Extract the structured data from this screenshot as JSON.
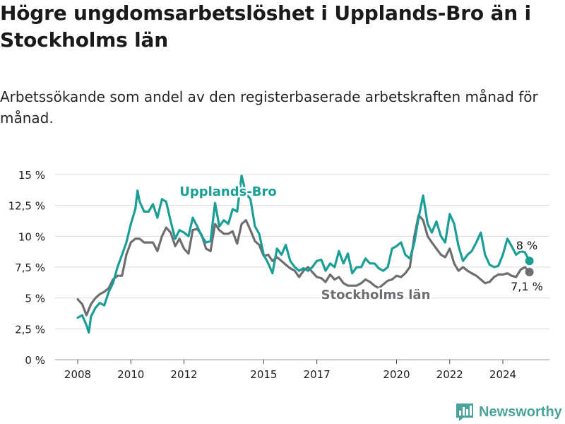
{
  "header": {
    "title": "Högre ungdomsarbetslöshet i Upplands-Bro än i Stockholms län",
    "subtitle": "Arbetssökande som andel av den registerbaserade arbetskraften månad för månad."
  },
  "branding": {
    "name": "Newsworthy",
    "icon": "bar-chart-flag-icon",
    "color": "#4aa39a"
  },
  "chart_data": {
    "type": "line",
    "y_ticks": [
      "0 %",
      "2,5 %",
      "5 %",
      "7,5 %",
      "10 %",
      "12,5 %",
      "15 %"
    ],
    "y_tick_values": [
      0,
      2.5,
      5,
      7.5,
      10,
      12.5,
      15
    ],
    "x_ticks": [
      "2008",
      "2010",
      "2012",
      "2015",
      "2017",
      "2020",
      "2022",
      "2024"
    ],
    "x_tick_values": [
      2008,
      2010,
      2012,
      2015,
      2017,
      2020,
      2022,
      2024
    ],
    "xlim": [
      2008,
      2025.2
    ],
    "ylim": [
      0,
      15
    ],
    "grid": true,
    "series": [
      {
        "name": "Upplands-Bro",
        "color": "#1a9e96",
        "end_label": "8 %",
        "points": [
          [
            2008.0,
            3.4
          ],
          [
            2008.17,
            3.6
          ],
          [
            2008.33,
            2.8
          ],
          [
            2008.42,
            2.2
          ],
          [
            2008.5,
            3.5
          ],
          [
            2008.67,
            4.2
          ],
          [
            2008.83,
            4.6
          ],
          [
            2009.0,
            4.4
          ],
          [
            2009.17,
            5.5
          ],
          [
            2009.33,
            6.2
          ],
          [
            2009.5,
            7.5
          ],
          [
            2009.67,
            8.5
          ],
          [
            2009.83,
            9.5
          ],
          [
            2010.0,
            11.0
          ],
          [
            2010.17,
            12.2
          ],
          [
            2010.25,
            13.7
          ],
          [
            2010.33,
            12.8
          ],
          [
            2010.5,
            12.0
          ],
          [
            2010.67,
            12.0
          ],
          [
            2010.83,
            12.6
          ],
          [
            2011.0,
            11.5
          ],
          [
            2011.17,
            13.0
          ],
          [
            2011.33,
            12.8
          ],
          [
            2011.5,
            11.2
          ],
          [
            2011.67,
            9.8
          ],
          [
            2011.83,
            10.5
          ],
          [
            2012.0,
            10.3
          ],
          [
            2012.17,
            10.0
          ],
          [
            2012.33,
            11.5
          ],
          [
            2012.5,
            10.8
          ],
          [
            2012.67,
            10.0
          ],
          [
            2012.83,
            9.5
          ],
          [
            2013.0,
            9.6
          ],
          [
            2013.17,
            12.7
          ],
          [
            2013.33,
            10.8
          ],
          [
            2013.5,
            11.3
          ],
          [
            2013.67,
            11.0
          ],
          [
            2013.83,
            12.2
          ],
          [
            2014.0,
            12.0
          ],
          [
            2014.17,
            14.9
          ],
          [
            2014.33,
            13.5
          ],
          [
            2014.5,
            13.0
          ],
          [
            2014.67,
            10.8
          ],
          [
            2014.83,
            10.2
          ],
          [
            2015.0,
            8.5
          ],
          [
            2015.17,
            7.8
          ],
          [
            2015.33,
            7.0
          ],
          [
            2015.5,
            9.0
          ],
          [
            2015.67,
            8.5
          ],
          [
            2015.83,
            9.3
          ],
          [
            2016.0,
            8.0
          ],
          [
            2016.17,
            7.5
          ],
          [
            2016.33,
            7.2
          ],
          [
            2016.5,
            7.4
          ],
          [
            2016.67,
            7.2
          ],
          [
            2016.83,
            7.5
          ],
          [
            2017.0,
            8.0
          ],
          [
            2017.17,
            8.1
          ],
          [
            2017.33,
            7.2
          ],
          [
            2017.5,
            7.8
          ],
          [
            2017.67,
            7.5
          ],
          [
            2017.83,
            8.8
          ],
          [
            2018.0,
            7.8
          ],
          [
            2018.17,
            8.6
          ],
          [
            2018.33,
            7.0
          ],
          [
            2018.5,
            7.5
          ],
          [
            2018.67,
            7.5
          ],
          [
            2018.83,
            8.2
          ],
          [
            2019.0,
            7.8
          ],
          [
            2019.17,
            7.8
          ],
          [
            2019.33,
            7.4
          ],
          [
            2019.5,
            7.2
          ],
          [
            2019.67,
            7.5
          ],
          [
            2019.83,
            9.0
          ],
          [
            2020.0,
            9.2
          ],
          [
            2020.17,
            9.5
          ],
          [
            2020.33,
            8.5
          ],
          [
            2020.5,
            8.2
          ],
          [
            2020.67,
            9.5
          ],
          [
            2020.83,
            11.5
          ],
          [
            2021.0,
            13.3
          ],
          [
            2021.17,
            11.0
          ],
          [
            2021.33,
            10.3
          ],
          [
            2021.5,
            11.2
          ],
          [
            2021.67,
            10.0
          ],
          [
            2021.83,
            9.5
          ],
          [
            2022.0,
            11.8
          ],
          [
            2022.17,
            11.0
          ],
          [
            2022.33,
            9.2
          ],
          [
            2022.5,
            8.0
          ],
          [
            2022.67,
            8.5
          ],
          [
            2022.83,
            8.8
          ],
          [
            2023.0,
            9.5
          ],
          [
            2023.17,
            10.3
          ],
          [
            2023.33,
            8.5
          ],
          [
            2023.5,
            7.7
          ],
          [
            2023.67,
            7.5
          ],
          [
            2023.83,
            7.6
          ],
          [
            2024.0,
            8.5
          ],
          [
            2024.17,
            9.8
          ],
          [
            2024.33,
            9.2
          ],
          [
            2024.5,
            8.5
          ],
          [
            2024.67,
            8.8
          ],
          [
            2024.83,
            8.7
          ],
          [
            2025.0,
            8.0
          ]
        ]
      },
      {
        "name": "Stockholms län",
        "color": "#6e6e72",
        "end_label": "7,1 %",
        "points": [
          [
            2008.0,
            4.9
          ],
          [
            2008.17,
            4.5
          ],
          [
            2008.33,
            3.6
          ],
          [
            2008.5,
            4.5
          ],
          [
            2008.67,
            5.0
          ],
          [
            2008.83,
            5.3
          ],
          [
            2009.0,
            5.5
          ],
          [
            2009.17,
            5.8
          ],
          [
            2009.33,
            6.5
          ],
          [
            2009.5,
            6.8
          ],
          [
            2009.67,
            6.8
          ],
          [
            2009.83,
            8.5
          ],
          [
            2010.0,
            9.5
          ],
          [
            2010.17,
            9.8
          ],
          [
            2010.33,
            9.8
          ],
          [
            2010.5,
            9.5
          ],
          [
            2010.67,
            9.5
          ],
          [
            2010.83,
            9.5
          ],
          [
            2011.0,
            8.8
          ],
          [
            2011.17,
            10.0
          ],
          [
            2011.33,
            10.7
          ],
          [
            2011.5,
            10.3
          ],
          [
            2011.67,
            9.2
          ],
          [
            2011.83,
            9.8
          ],
          [
            2012.0,
            9.0
          ],
          [
            2012.17,
            8.6
          ],
          [
            2012.33,
            10.5
          ],
          [
            2012.5,
            10.6
          ],
          [
            2012.67,
            10.1
          ],
          [
            2012.83,
            9.0
          ],
          [
            2013.0,
            8.8
          ],
          [
            2013.17,
            11.0
          ],
          [
            2013.33,
            10.5
          ],
          [
            2013.5,
            10.2
          ],
          [
            2013.67,
            10.2
          ],
          [
            2013.83,
            10.4
          ],
          [
            2014.0,
            9.4
          ],
          [
            2014.17,
            11.0
          ],
          [
            2014.33,
            11.3
          ],
          [
            2014.5,
            10.5
          ],
          [
            2014.67,
            9.6
          ],
          [
            2014.83,
            9.3
          ],
          [
            2015.0,
            8.4
          ],
          [
            2015.17,
            8.5
          ],
          [
            2015.33,
            8.0
          ],
          [
            2015.5,
            8.3
          ],
          [
            2015.67,
            8.0
          ],
          [
            2015.83,
            7.7
          ],
          [
            2016.0,
            7.4
          ],
          [
            2016.17,
            7.2
          ],
          [
            2016.33,
            6.7
          ],
          [
            2016.5,
            7.2
          ],
          [
            2016.67,
            7.5
          ],
          [
            2016.83,
            7.1
          ],
          [
            2017.0,
            6.7
          ],
          [
            2017.17,
            6.6
          ],
          [
            2017.33,
            6.3
          ],
          [
            2017.5,
            6.9
          ],
          [
            2017.67,
            6.5
          ],
          [
            2017.83,
            6.7
          ],
          [
            2018.0,
            6.2
          ],
          [
            2018.17,
            6.0
          ],
          [
            2018.33,
            6.0
          ],
          [
            2018.5,
            6.0
          ],
          [
            2018.67,
            6.2
          ],
          [
            2018.83,
            6.5
          ],
          [
            2019.0,
            6.3
          ],
          [
            2019.17,
            6.0
          ],
          [
            2019.33,
            5.8
          ],
          [
            2019.67,
            6.4
          ],
          [
            2019.83,
            6.5
          ],
          [
            2020.0,
            6.8
          ],
          [
            2020.17,
            6.7
          ],
          [
            2020.33,
            7.0
          ],
          [
            2020.5,
            7.5
          ],
          [
            2020.67,
            10.0
          ],
          [
            2020.83,
            11.7
          ],
          [
            2021.0,
            11.3
          ],
          [
            2021.17,
            10.0
          ],
          [
            2021.33,
            9.5
          ],
          [
            2021.5,
            9.0
          ],
          [
            2021.67,
            8.5
          ],
          [
            2021.83,
            8.3
          ],
          [
            2022.0,
            9.0
          ],
          [
            2022.17,
            7.8
          ],
          [
            2022.33,
            7.2
          ],
          [
            2022.5,
            7.5
          ],
          [
            2022.67,
            7.2
          ],
          [
            2022.83,
            7.0
          ],
          [
            2023.0,
            6.8
          ],
          [
            2023.17,
            6.5
          ],
          [
            2023.33,
            6.2
          ],
          [
            2023.5,
            6.3
          ],
          [
            2023.67,
            6.7
          ],
          [
            2023.83,
            6.9
          ],
          [
            2024.0,
            6.9
          ],
          [
            2024.17,
            7.0
          ],
          [
            2024.33,
            6.8
          ],
          [
            2024.5,
            6.7
          ],
          [
            2024.67,
            7.3
          ],
          [
            2024.83,
            7.5
          ],
          [
            2025.0,
            7.1
          ]
        ]
      }
    ]
  }
}
